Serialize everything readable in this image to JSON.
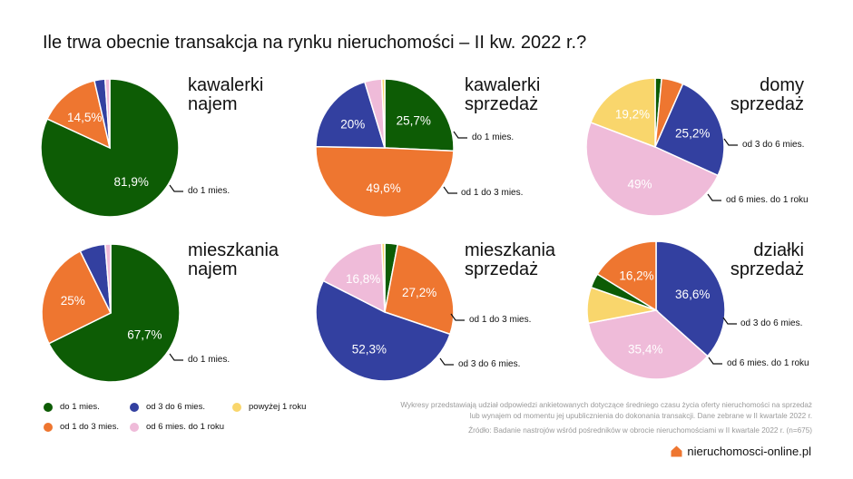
{
  "title": "Ile trwa obecnie transakcja na rynku nieruchomości – II kw. 2022 r.?",
  "colors": {
    "do_1": "#0d5c05",
    "od_1_3": "#ee7630",
    "od_3_6": "#3340a0",
    "od_6_12": "#efbbd9",
    "pow_1": "#f9d66c"
  },
  "chart_data": [
    {
      "type": "pie",
      "title_lines": [
        "kawalerki",
        "najem"
      ],
      "slices": [
        {
          "label": "do 1 mies.",
          "value": 81.9,
          "color": "do_1",
          "text": "81,9%"
        },
        {
          "label": "od 1 do 3 mies.",
          "value": 14.5,
          "color": "od_1_3",
          "text": "14,5%"
        },
        {
          "label": "od 3 do 6 mies.",
          "value": 2.5,
          "color": "od_3_6",
          "text": ""
        },
        {
          "label": "od 6 mies. do 1 roku",
          "value": 1.1,
          "color": "od_6_12",
          "text": ""
        }
      ],
      "callouts": [
        "do 1 mies."
      ]
    },
    {
      "type": "pie",
      "title_lines": [
        "kawalerki",
        "sprzedaż"
      ],
      "slices": [
        {
          "label": "do 1 mies.",
          "value": 25.7,
          "color": "do_1",
          "text": "25,7%"
        },
        {
          "label": "od 1 do 3 mies.",
          "value": 49.6,
          "color": "od_1_3",
          "text": "49,6%"
        },
        {
          "label": "od 3 do 6 mies.",
          "value": 20.0,
          "color": "od_3_6",
          "text": "20%"
        },
        {
          "label": "od 6 mies. do 1 roku",
          "value": 4.0,
          "color": "od_6_12",
          "text": ""
        },
        {
          "label": "powyżej 1 roku",
          "value": 0.7,
          "color": "pow_1",
          "text": ""
        }
      ],
      "callouts": [
        "do 1 mies.",
        "od 1 do 3 mies."
      ]
    },
    {
      "type": "pie",
      "title_lines": [
        "domy",
        "sprzedaż"
      ],
      "slices": [
        {
          "label": "do 1 mies.",
          "value": 1.5,
          "color": "do_1",
          "text": ""
        },
        {
          "label": "od 1 do 3 mies.",
          "value": 5.1,
          "color": "od_1_3",
          "text": ""
        },
        {
          "label": "od 3 do 6 mies.",
          "value": 25.2,
          "color": "od_3_6",
          "text": "25,2%"
        },
        {
          "label": "od 6 mies. do 1 roku",
          "value": 49.0,
          "color": "od_6_12",
          "text": "49%"
        },
        {
          "label": "powyżej 1 roku",
          "value": 19.2,
          "color": "pow_1",
          "text": "19,2%"
        }
      ],
      "callouts": [
        "od 3 do 6 mies.",
        "od 6 mies. do 1 roku"
      ]
    },
    {
      "type": "pie",
      "title_lines": [
        "mieszkania",
        "najem"
      ],
      "slices": [
        {
          "label": "do 1 mies.",
          "value": 67.7,
          "color": "do_1",
          "text": "67,7%"
        },
        {
          "label": "od 1 do 3 mies.",
          "value": 25.0,
          "color": "od_1_3",
          "text": "25%"
        },
        {
          "label": "od 3 do 6 mies.",
          "value": 6.0,
          "color": "od_3_6",
          "text": ""
        },
        {
          "label": "od 6 mies. do 1 roku",
          "value": 1.3,
          "color": "od_6_12",
          "text": ""
        }
      ],
      "callouts": [
        "do 1 mies."
      ]
    },
    {
      "type": "pie",
      "title_lines": [
        "mieszkania",
        "sprzedaż"
      ],
      "slices": [
        {
          "label": "do 1 mies.",
          "value": 3.0,
          "color": "do_1",
          "text": ""
        },
        {
          "label": "od 1 do 3 mies.",
          "value": 27.2,
          "color": "od_1_3",
          "text": "27,2%"
        },
        {
          "label": "od 3 do 6 mies.",
          "value": 52.3,
          "color": "od_3_6",
          "text": "52,3%"
        },
        {
          "label": "od 6 mies. do 1 roku",
          "value": 16.8,
          "color": "od_6_12",
          "text": "16,8%"
        },
        {
          "label": "powyżej 1 roku",
          "value": 0.7,
          "color": "pow_1",
          "text": ""
        }
      ],
      "callouts": [
        "od 1 do 3 mies.",
        "od 3 do 6 mies."
      ]
    },
    {
      "type": "pie",
      "title_lines": [
        "działki",
        "sprzedaż"
      ],
      "slices": [
        {
          "label": "od 3 do 6 mies.",
          "value": 36.6,
          "color": "od_3_6",
          "text": "36,6%"
        },
        {
          "label": "od 6 mies. do 1 roku",
          "value": 35.4,
          "color": "od_6_12",
          "text": "35,4%"
        },
        {
          "label": "powyżej 1 roku",
          "value": 8.4,
          "color": "pow_1",
          "text": ""
        },
        {
          "label": "do 1 mies.",
          "value": 3.4,
          "color": "do_1",
          "text": ""
        },
        {
          "label": "od 1 do 3 mies.",
          "value": 16.2,
          "color": "od_1_3",
          "text": "16,2%"
        }
      ],
      "callouts": [
        "od 3 do 6 mies.",
        "od 6 mies. do 1 roku"
      ]
    }
  ],
  "legend": [
    {
      "label": "do 1 mies.",
      "color": "do_1"
    },
    {
      "label": "od 3 do 6 mies.",
      "color": "od_3_6"
    },
    {
      "label": "powyżej 1 roku",
      "color": "pow_1"
    },
    {
      "label": "od 1 do 3 mies.",
      "color": "od_1_3"
    },
    {
      "label": "od 6 mies. do 1 roku",
      "color": "od_6_12"
    }
  ],
  "notes": {
    "line1": "Wykresy przedstawiają udział odpowiedzi ankietowanych dotyczące średniego czasu życia oferty nieruchomości na sprzedaż",
    "line2": "lub wynajem od momentu jej upublicznienia do dokonania transakcji. Dane zebrane w II kwartale 2022 r.",
    "source": "Źródło: Badanie nastrojów wśród pośredników w obrocie nieruchomościami w II kwartale 2022 r. (n=675)"
  },
  "brand": "nieruchomosci-online.pl"
}
